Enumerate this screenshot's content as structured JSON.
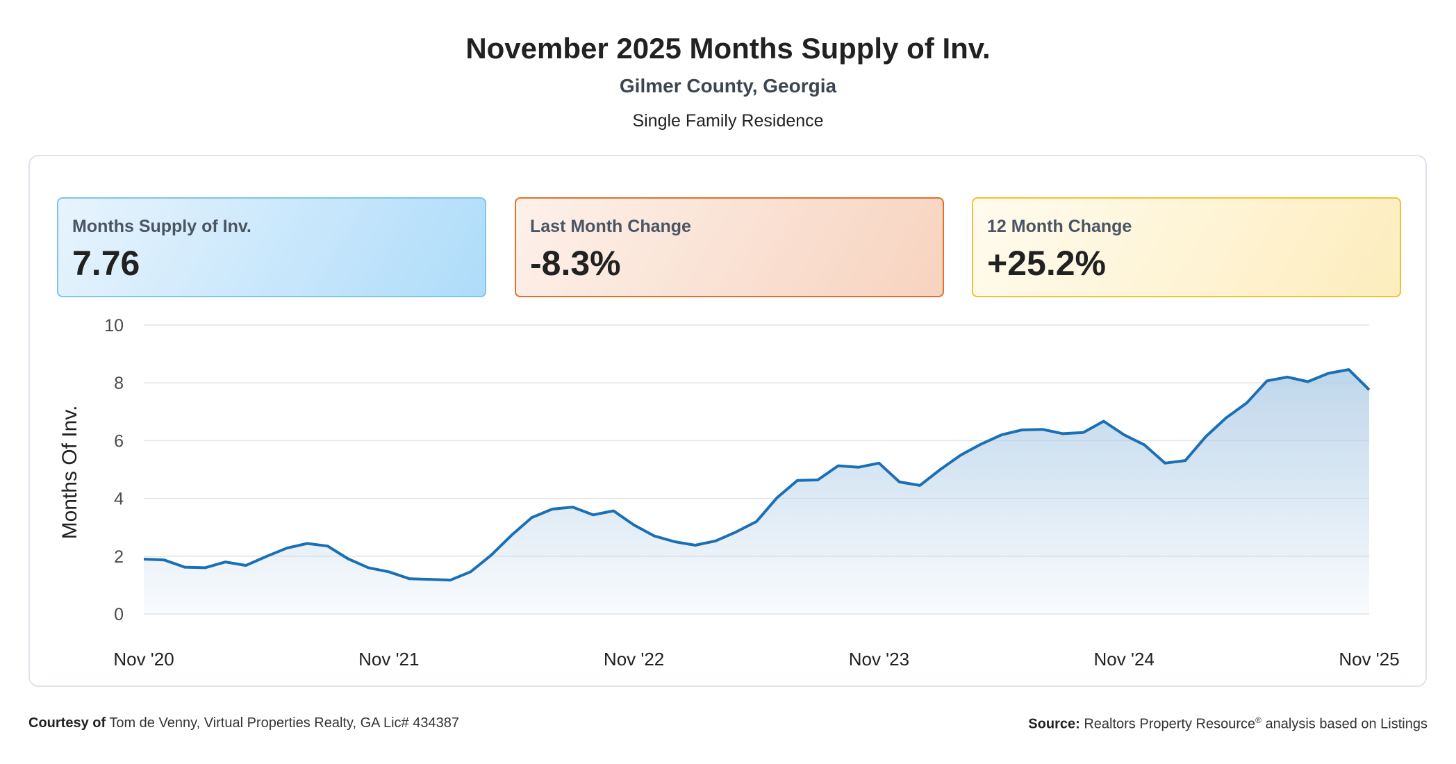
{
  "header": {
    "title": "November 2025 Months Supply of Inv.",
    "location": "Gilmer County, Georgia",
    "property_type": "Single Family Residence"
  },
  "cards": [
    {
      "label": "Months Supply of Inv.",
      "value": "7.76",
      "color": "#7cc4f1"
    },
    {
      "label": "Last Month Change",
      "value": "-8.3%",
      "color": "#e26f2d"
    },
    {
      "label": "12 Month Change",
      "value": "+25.2%",
      "color": "#f2c230"
    }
  ],
  "footer": {
    "courtesy_label": "Courtesy of",
    "courtesy_text": "Tom de Venny, Virtual Properties Realty, GA Lic# 434387",
    "source_label": "Source:",
    "source_text_a": "Realtors Property Resource",
    "source_reg": "®",
    "source_text_b": " analysis based on Listings"
  },
  "chart_data": {
    "type": "area",
    "ylabel": "Months Of Inv.",
    "ylim": [
      0,
      10
    ],
    "yticks": [
      0,
      2,
      4,
      6,
      8,
      10
    ],
    "xticks": [
      "Nov '20",
      "Nov '21",
      "Nov '22",
      "Nov '23",
      "Nov '24",
      "Nov '25"
    ],
    "grid": true,
    "line_color": "#1a6fb5",
    "fill_color": "#b3cfe8",
    "series": [
      {
        "values": [
          1.9,
          1.87,
          1.62,
          1.6,
          1.8,
          1.68,
          1.99,
          2.28,
          2.44,
          2.35,
          1.91,
          1.6,
          1.46,
          1.22,
          1.2,
          1.17,
          1.46,
          2.03,
          2.72,
          3.34,
          3.63,
          3.7,
          3.43,
          3.57,
          3.08,
          2.7,
          2.5,
          2.38,
          2.53,
          2.84,
          3.2,
          4.02,
          4.62,
          4.64,
          5.13,
          5.08,
          5.22,
          4.57,
          4.45,
          5.0,
          5.5,
          5.88,
          6.2,
          6.37,
          6.39,
          6.24,
          6.28,
          6.67,
          6.2,
          5.85,
          5.22,
          5.31,
          6.14,
          6.79,
          7.3,
          8.07,
          8.2,
          8.04,
          8.33,
          8.46,
          7.76
        ]
      }
    ]
  }
}
